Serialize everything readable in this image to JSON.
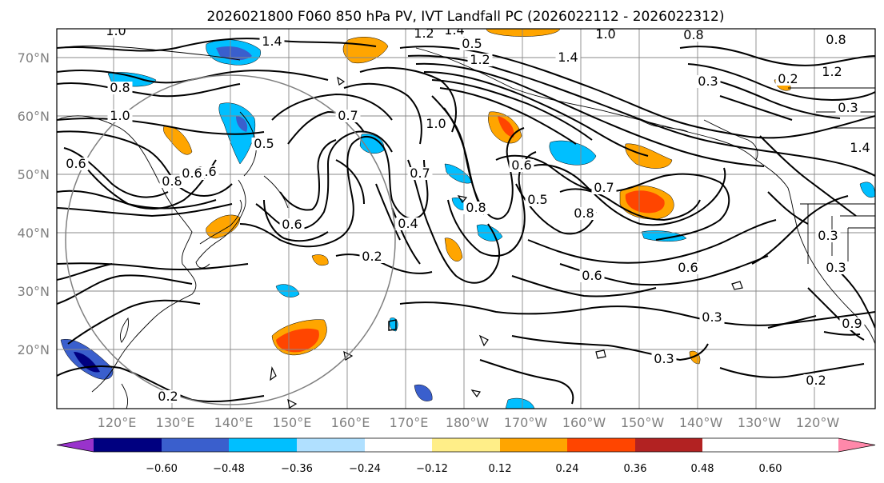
{
  "title": "2026021800 F060 850 hPa PV, IVT Landfall PC (2026022112 - 2026022312)",
  "lat_labels": [
    "70°N",
    "60°N",
    "50°N",
    "40°N",
    "30°N",
    "20°N"
  ],
  "lon_labels": [
    "120°E",
    "130°E",
    "140°E",
    "150°E",
    "160°E",
    "170°E",
    "180°W",
    "170°W",
    "160°W",
    "150°W",
    "140°W",
    "130°W",
    "120°W"
  ],
  "colorbar": {
    "colors": [
      "#9933cc",
      "#000080",
      "#3a5fcd",
      "#00bfff",
      "#b0e0ff",
      "#ffffff",
      "#ffee88",
      "#ffa500",
      "#ff4500",
      "#b22222",
      "#ff88aa"
    ],
    "ticks": [
      "−0.60",
      "−0.48",
      "−0.36",
      "−0.24",
      "−0.12",
      "0.12",
      "0.24",
      "0.36",
      "0.48",
      "0.60"
    ]
  },
  "contour_labels": [
    "1.0",
    "1.4",
    "1.2",
    "1.4",
    "1.0",
    "0.8",
    "0.8",
    "0.6",
    "1.0",
    "0.8",
    "0.6",
    "0.5",
    "0.7",
    "0.4",
    "0.6",
    "0.5",
    "0.3",
    "0.2",
    "0.8",
    "0.7",
    "0.6",
    "0.2",
    "0.3",
    "0.3",
    "0.2",
    "0.6",
    "0.3",
    "0.6",
    "1.2",
    "1.4",
    "0.7",
    "0.5",
    "1.4",
    "1.0",
    "0.2",
    "0.3",
    "0.8",
    "1.2",
    "0.8",
    "0.3",
    "0.9",
    "0.6"
  ]
}
